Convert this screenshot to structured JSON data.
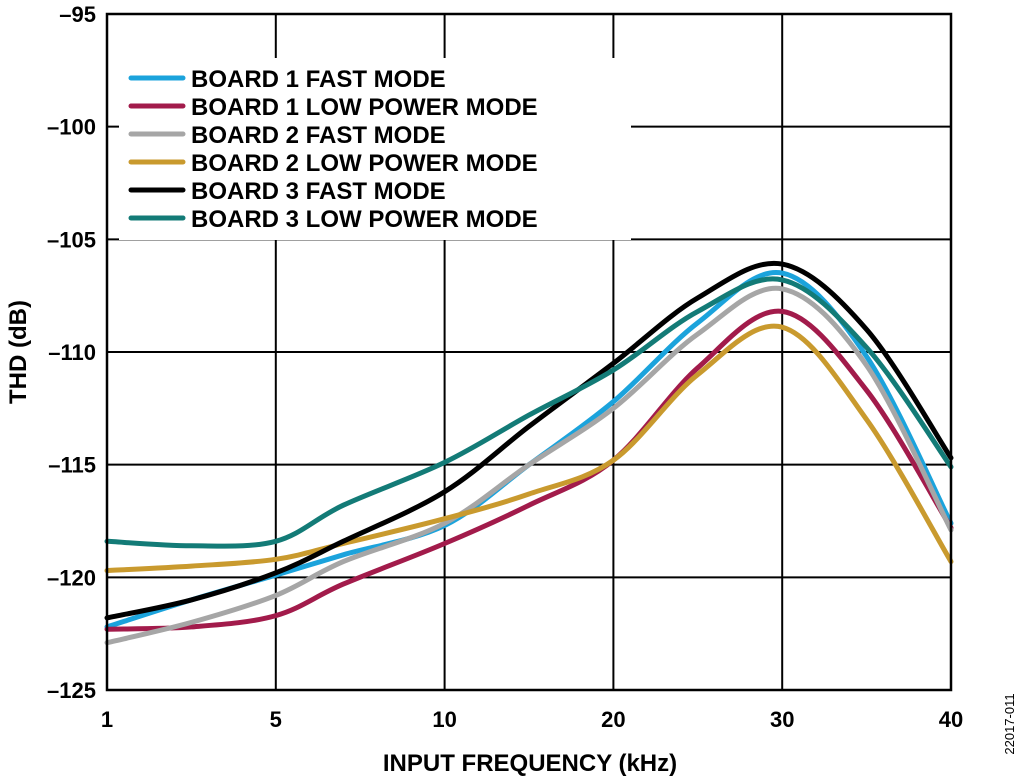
{
  "chart_data": {
    "type": "line",
    "xlabel": "INPUT FREQUENCY (kHz)",
    "ylabel": "THD (dB)",
    "x_ticks": [
      "1",
      "5",
      "10",
      "20",
      "30",
      "40"
    ],
    "x_tick_values": [
      1,
      5,
      10,
      20,
      30,
      40
    ],
    "x_scale": "categorical-ticks",
    "ylim": [
      -125,
      -95
    ],
    "y_ticks": [
      -95,
      -100,
      -105,
      -110,
      -115,
      -120,
      -125
    ],
    "y_tick_labels": [
      "–95",
      "–100",
      "–105",
      "–110",
      "–115",
      "–120",
      "–125"
    ],
    "grid": true,
    "legend_position": "top-left",
    "figure_id": "22017-011",
    "series": [
      {
        "name": "BOARD 1 FAST MODE",
        "color": "#1ba3dc",
        "x": [
          1,
          3,
          5,
          7,
          10,
          15,
          20,
          25,
          30,
          35,
          40
        ],
        "y": [
          -122.2,
          -121.0,
          -119.9,
          -119.0,
          -117.7,
          -115.0,
          -112.2,
          -108.7,
          -106.5,
          -110.2,
          -117.6
        ]
      },
      {
        "name": "BOARD 1 LOW POWER MODE",
        "color": "#a21b4b",
        "x": [
          1,
          3,
          5,
          7,
          10,
          15,
          20,
          25,
          30,
          35,
          40
        ],
        "y": [
          -122.3,
          -122.2,
          -121.7,
          -120.3,
          -118.5,
          -116.8,
          -114.8,
          -110.7,
          -108.2,
          -111.7,
          -117.8
        ]
      },
      {
        "name": "BOARD 2 FAST MODE",
        "color": "#a6a6a6",
        "x": [
          1,
          3,
          5,
          7,
          10,
          15,
          20,
          25,
          30,
          35,
          40
        ],
        "y": [
          -122.9,
          -122.0,
          -120.8,
          -119.3,
          -117.6,
          -115.0,
          -112.5,
          -109.2,
          -107.2,
          -110.6,
          -117.9
        ]
      },
      {
        "name": "BOARD 2 LOW POWER MODE",
        "color": "#c99a2e",
        "x": [
          1,
          3,
          5,
          7,
          10,
          15,
          20,
          25,
          30,
          35,
          40
        ],
        "y": [
          -119.7,
          -119.5,
          -119.2,
          -118.5,
          -117.4,
          -116.3,
          -114.8,
          -111.0,
          -108.9,
          -113.0,
          -119.3
        ]
      },
      {
        "name": "BOARD 3 FAST MODE",
        "color": "#000000",
        "x": [
          1,
          3,
          5,
          7,
          10,
          15,
          20,
          25,
          30,
          35,
          40
        ],
        "y": [
          -121.8,
          -121.0,
          -119.8,
          -118.4,
          -116.2,
          -113.3,
          -110.5,
          -107.6,
          -106.1,
          -109.0,
          -114.7
        ]
      },
      {
        "name": "BOARD 3 LOW POWER MODE",
        "color": "#137b77",
        "x": [
          1,
          3,
          5,
          7,
          10,
          15,
          20,
          25,
          30,
          35,
          40
        ],
        "y": [
          -118.4,
          -118.6,
          -118.4,
          -116.8,
          -114.9,
          -112.8,
          -110.8,
          -108.2,
          -106.8,
          -109.8,
          -115.1
        ]
      }
    ]
  }
}
